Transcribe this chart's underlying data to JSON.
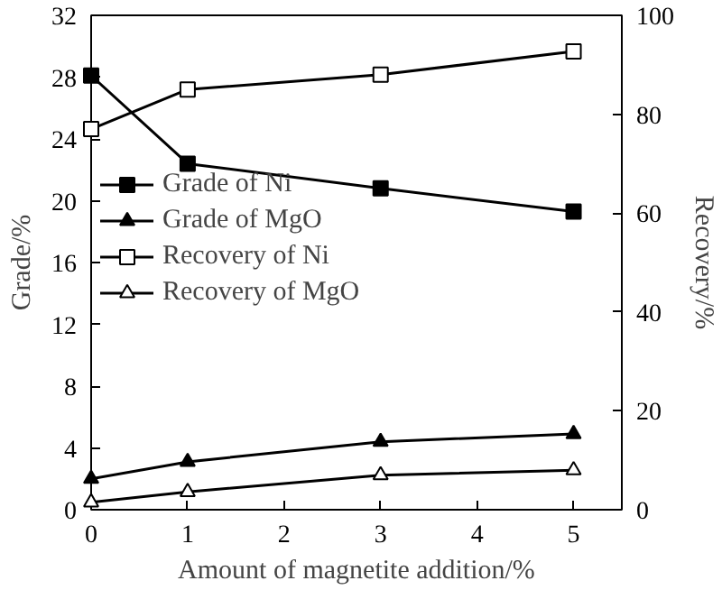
{
  "chart_data": {
    "type": "line",
    "xlabel": "Amount of magnetite addition/%",
    "ylabel": "Grade/%",
    "y2label": "Recovery/%",
    "x": [
      0,
      1,
      3,
      5
    ],
    "series": [
      {
        "name": "Grade of Ni",
        "color": "#000000",
        "marker": "square",
        "values": [
          28.1,
          22.4,
          20.8,
          19.3
        ]
      },
      {
        "name": "Grade of MgO",
        "color": "#000000",
        "marker": "triangle",
        "values": [
          2.0,
          3.1,
          4.4,
          4.9
        ]
      },
      {
        "name": "Recovery of Ni",
        "color": "#000000",
        "marker": "square",
        "axis": "y2",
        "values": [
          77,
          85,
          88,
          92.7
        ]
      },
      {
        "name": "Recovery of MgO",
        "color": "#000000",
        "marker": "triangle",
        "axis": "y2",
        "values": [
          1.5,
          3.6,
          7,
          8
        ]
      }
    ],
    "xlim": [
      0,
      5.5
    ],
    "xticks": [
      0,
      1,
      2,
      3,
      4,
      5
    ],
    "ylim": [
      0,
      32
    ],
    "yticks": [
      0,
      4,
      8,
      12,
      16,
      20,
      24,
      28,
      32
    ],
    "y2lim": [
      0,
      100
    ],
    "y2ticks": [
      0,
      20,
      40,
      60,
      80,
      100
    ],
    "grid": false,
    "legend": "left",
    "line_style": "solid"
  }
}
